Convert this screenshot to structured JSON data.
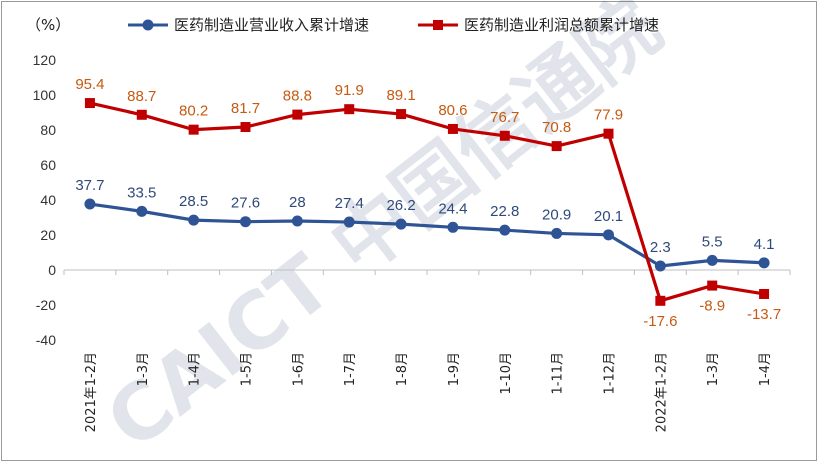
{
  "chart_data": {
    "type": "line",
    "unit": "（%）",
    "categories": [
      "2021年1-2月",
      "1-3月",
      "1-4月",
      "1-5月",
      "1-6月",
      "1-7月",
      "1-8月",
      "1-9月",
      "1-10月",
      "1-11月",
      "1-12月",
      "2022年1-2月",
      "1-3月",
      "1-4月"
    ],
    "series": [
      {
        "name": "医药制造业营业收入累计增速",
        "color": "#2f5496",
        "marker": "circle",
        "values": [
          37.7,
          33.5,
          28.5,
          27.6,
          28,
          27.4,
          26.2,
          24.4,
          22.8,
          20.9,
          20.1,
          2.3,
          5.5,
          4.1
        ],
        "labels": [
          "37.7",
          "33.5",
          "28.5",
          "27.6",
          "28",
          "27.4",
          "26.2",
          "24.4",
          "22.8",
          "20.9",
          "20.1",
          "2.3",
          "5.5",
          "4.1"
        ],
        "label_color": "#2f4a7a"
      },
      {
        "name": "医药制造业利润总额累计增速",
        "color": "#c00000",
        "marker": "square",
        "values": [
          95.4,
          88.7,
          80.2,
          81.7,
          88.8,
          91.9,
          89.1,
          80.6,
          76.7,
          70.8,
          77.9,
          -17.6,
          -8.9,
          -13.7
        ],
        "labels": [
          "95.4",
          "88.7",
          "80.2",
          "81.7",
          "88.8",
          "91.9",
          "89.1",
          "80.6",
          "76.7",
          "70.8",
          "77.9",
          "-17.6",
          "-8.9",
          "-13.7"
        ],
        "label_color": "#c55a11"
      }
    ],
    "y_ticks": [
      "120",
      "100",
      "80",
      "60",
      "40",
      "20",
      "0",
      "-20",
      "-40"
    ],
    "ylim": [
      -40,
      120
    ],
    "grid": false,
    "legend": "top",
    "watermark": "CAICT 中国信通院"
  }
}
